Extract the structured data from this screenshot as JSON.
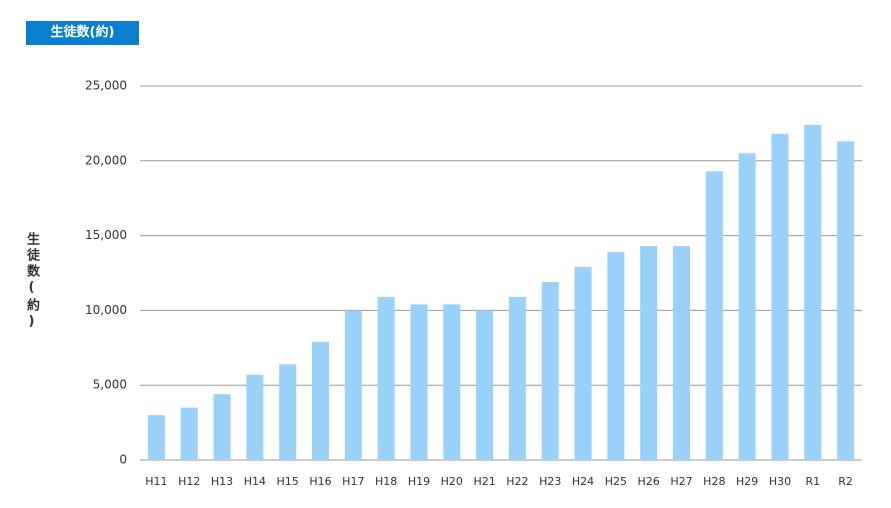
{
  "chart_data": {
    "type": "bar",
    "title": "生徒数(約)",
    "y_label": "生徒数(約)",
    "categories": [
      "H11",
      "H12",
      "H13",
      "H14",
      "H15",
      "H16",
      "H17",
      "H18",
      "H19",
      "H20",
      "H21",
      "H22",
      "H23",
      "H24",
      "H25",
      "H26",
      "H27",
      "H28",
      "H29",
      "H30",
      "R1",
      "R2"
    ],
    "values": [
      3000,
      3500,
      4400,
      5700,
      6400,
      7900,
      10000,
      10900,
      10400,
      10400,
      10000,
      10900,
      11900,
      12900,
      13900,
      14300,
      14300,
      19300,
      20500,
      21800,
      22400,
      21300
    ],
    "color": "#99d1fb",
    "ylim": [
      0,
      25000
    ],
    "yticks": [
      0,
      {
        "value": 5000,
        "label": "5,000"
      },
      {
        "value": 10000,
        "label": "10,000"
      },
      {
        "value": 15000,
        "label": "15,000"
      },
      {
        "value": 20000,
        "label": "20,000"
      },
      {
        "value": 25000,
        "label": "25,000"
      }
    ],
    "grid": true
  }
}
